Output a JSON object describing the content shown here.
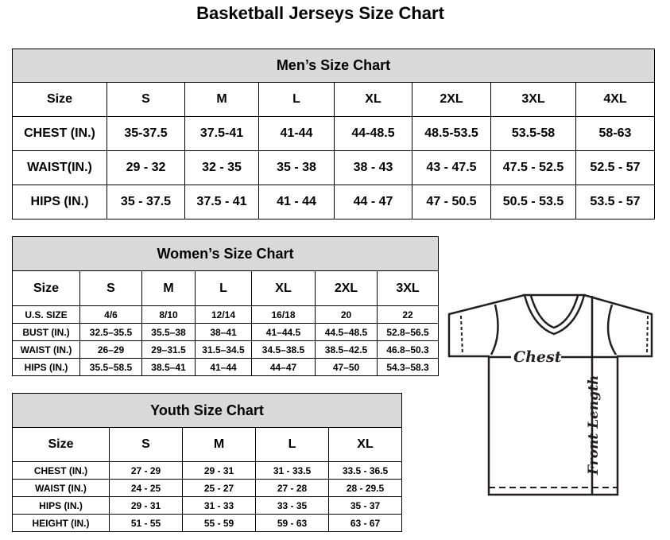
{
  "title": "Basketball Jerseys Size Chart",
  "men": {
    "title": "Men’s Size Chart",
    "header": [
      "Size",
      "S",
      "M",
      "L",
      "XL",
      "2XL",
      "3XL",
      "4XL"
    ],
    "rows": [
      [
        "CHEST (IN.)",
        "35-37.5",
        "37.5-41",
        "41-44",
        "44-48.5",
        "48.5-53.5",
        "53.5-58",
        "58-63"
      ],
      [
        "WAIST(IN.)",
        "29 - 32",
        "32 - 35",
        "35 - 38",
        "38 - 43",
        "43 - 47.5",
        "47.5 - 52.5",
        "52.5 - 57"
      ],
      [
        "HIPS (IN.)",
        "35 - 37.5",
        "37.5 - 41",
        "41 - 44",
        "44 - 47",
        "47 - 50.5",
        "50.5 - 53.5",
        "53.5 - 57"
      ]
    ]
  },
  "women": {
    "title": "Women’s Size Chart",
    "header": [
      "Size",
      "S",
      "M",
      "L",
      "XL",
      "2XL",
      "3XL"
    ],
    "rows": [
      [
        "U.S. SIZE",
        "4/6",
        "8/10",
        "12/14",
        "16/18",
        "20",
        "22"
      ],
      [
        "BUST (IN.)",
        "32.5–35.5",
        "35.5–38",
        "38–41",
        "41–44.5",
        "44.5–48.5",
        "52.8–56.5"
      ],
      [
        "WAIST (IN.)",
        "26–29",
        "29–31.5",
        "31.5–34.5",
        "34.5–38.5",
        "38.5–42.5",
        "46.8–50.3"
      ],
      [
        "HIPS (IN.)",
        "35.5–58.5",
        "38.5–41",
        "41–44",
        "44–47",
        "47–50",
        "54.3–58.3"
      ]
    ]
  },
  "youth": {
    "title": "Youth Size Chart",
    "header": [
      "Size",
      "S",
      "M",
      "L",
      "XL"
    ],
    "rows": [
      [
        "CHEST (IN.)",
        "27 - 29",
        "29 - 31",
        "31 - 33.5",
        "33.5 - 36.5"
      ],
      [
        "WAIST (IN.)",
        "24 - 25",
        "25 - 27",
        "27 - 28",
        "28 - 29.5"
      ],
      [
        "HIPS (IN.)",
        "29 - 31",
        "31 - 33",
        "33 - 35",
        "35 - 37"
      ],
      [
        "HEIGHT (IN.)",
        "51 - 55",
        "55 - 59",
        "59 - 63",
        "63 - 67"
      ]
    ]
  },
  "diagram": {
    "chest_label": "Chest",
    "length_label": "Front Length"
  }
}
